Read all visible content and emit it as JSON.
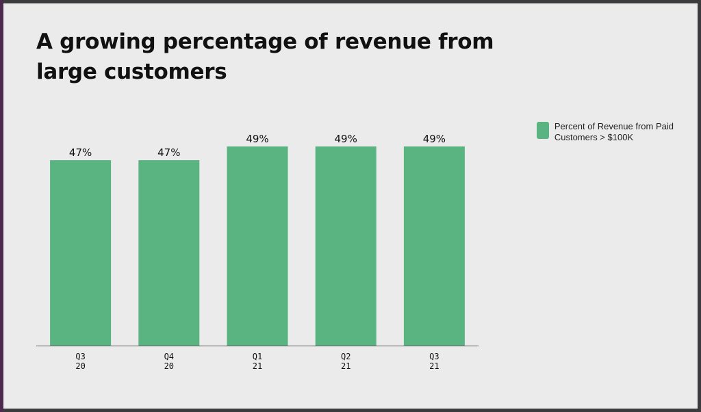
{
  "title": "A growing percentage of revenue from large customers",
  "colors": {
    "bar": "#5ab482",
    "axis": "#555555",
    "text": "#111111"
  },
  "chart_data": {
    "type": "bar",
    "title": "A growing percentage of revenue from large customers",
    "categories": [
      [
        "Q3",
        "20"
      ],
      [
        "Q4",
        "20"
      ],
      [
        "Q1",
        "21"
      ],
      [
        "Q2",
        "21"
      ],
      [
        "Q3",
        "21"
      ]
    ],
    "series": [
      {
        "name": "Percent of Revenue from Paid Customers > $100K",
        "values": [
          47,
          47,
          49,
          49,
          49
        ],
        "labels": [
          "47%",
          "47%",
          "49%",
          "49%",
          "49%"
        ]
      }
    ],
    "xlabel": "",
    "ylabel": "",
    "ylim": [
      20,
      49
    ],
    "grid": false,
    "legend_position": "right"
  }
}
